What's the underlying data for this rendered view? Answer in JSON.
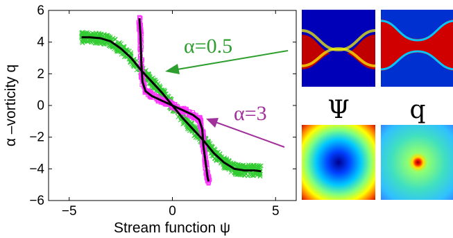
{
  "chart_data": {
    "type": "scatter",
    "xlabel": "Stream function ψ",
    "ylabel": "α –vorticity q",
    "xlim": [
      -6,
      6
    ],
    "ylim": [
      -6,
      6
    ],
    "x_ticks": [
      "−5",
      "0",
      "5"
    ],
    "y_ticks": [
      "6",
      "4",
      "2",
      "0",
      "−2",
      "−4",
      "−6"
    ],
    "grid": false,
    "series": [
      {
        "name": "α=0.5",
        "color": "#33cc33",
        "marker": "cross",
        "fit_color": "#000000",
        "points": [
          [
            -4.4,
            4.3
          ],
          [
            -4.0,
            4.3
          ],
          [
            -3.5,
            4.25
          ],
          [
            -3.0,
            4.05
          ],
          [
            -2.5,
            3.6
          ],
          [
            -2.0,
            3.0
          ],
          [
            -1.5,
            2.2
          ],
          [
            -1.0,
            1.5
          ],
          [
            -0.5,
            0.8
          ],
          [
            0.0,
            0.0
          ],
          [
            0.5,
            -0.8
          ],
          [
            1.0,
            -1.5
          ],
          [
            1.5,
            -2.2
          ],
          [
            2.0,
            -3.0
          ],
          [
            2.5,
            -3.6
          ],
          [
            3.0,
            -4.0
          ],
          [
            3.5,
            -4.1
          ],
          [
            4.0,
            -4.1
          ],
          [
            4.3,
            -4.15
          ]
        ]
      },
      {
        "name": "α=3",
        "color": "#ff33ff",
        "marker": "square",
        "fit_color": "#000000",
        "points": [
          [
            -1.6,
            5.5
          ],
          [
            -1.55,
            4.5
          ],
          [
            -1.5,
            2.5
          ],
          [
            -1.45,
            1.5
          ],
          [
            -1.3,
            0.9
          ],
          [
            -1.0,
            0.6
          ],
          [
            -0.5,
            0.3
          ],
          [
            0.0,
            0.0
          ],
          [
            0.5,
            -0.3
          ],
          [
            1.0,
            -0.6
          ],
          [
            1.3,
            -0.9
          ],
          [
            1.45,
            -1.5
          ],
          [
            1.5,
            -2.5
          ],
          [
            1.6,
            -3.5
          ],
          [
            1.7,
            -4.5
          ],
          [
            1.75,
            -4.8
          ]
        ]
      }
    ],
    "annotations": [
      {
        "text": "α=0.5",
        "color": "#2e9e2e",
        "arrow_to": [
          -0.3,
          2.3
        ]
      },
      {
        "text": "α=3",
        "color": "#a0309a",
        "arrow_to": [
          1.8,
          -0.6
        ]
      }
    ]
  },
  "panels": {
    "row_labels": [
      "Ψ",
      "q"
    ]
  }
}
